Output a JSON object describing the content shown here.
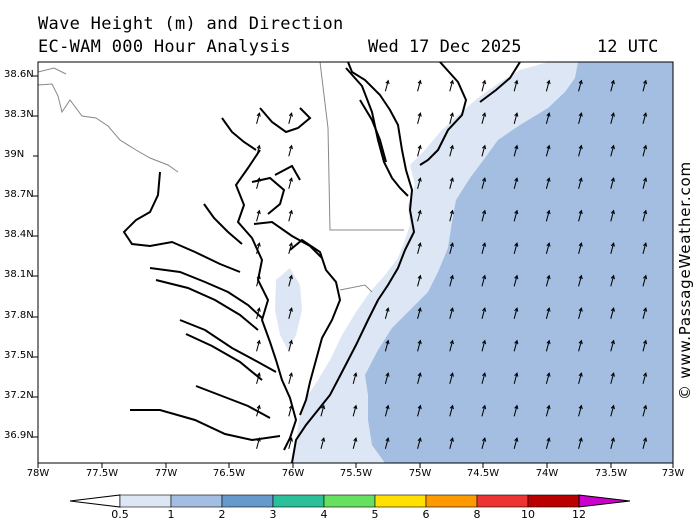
{
  "title": {
    "line1": "Wave Height (m) and Direction",
    "line2": "EC-WAM 000 Hour Analysis",
    "date": "Wed 17 Dec 2025",
    "time": "12 UTC"
  },
  "credit": "© www.PassageWeather.com",
  "axes": {
    "lat_labels": [
      "38.6N",
      "38.3N",
      "39N",
      "38.7N",
      "38.4N",
      "38.1N",
      "37.8N",
      "37.5N",
      "37.2N",
      "36.9N"
    ],
    "lon_labels": [
      "78W",
      "77.5W",
      "77W",
      "76.5W",
      "76W",
      "75.5W",
      "75W",
      "74.5W",
      "74W",
      "73.5W",
      "73W"
    ]
  },
  "colorbar": {
    "labels": [
      "0.5",
      "1",
      "2",
      "3",
      "4",
      "5",
      "6",
      "8",
      "10",
      "12"
    ],
    "colors": [
      "#dde6f4",
      "#a3bee0",
      "#6699cc",
      "#2bbf9a",
      "#66e060",
      "#ffe000",
      "#ff9900",
      "#ee3333",
      "#bb0000",
      "#cc00cc"
    ]
  },
  "legend": {
    "unit": "m"
  },
  "colors": {
    "shallow": "#dde6f4",
    "deep": "#a3bee0",
    "land": "#ffffff",
    "coast": "#000000",
    "border": "#888888"
  },
  "arrows": {
    "direction_deg": 15,
    "note_icon": "wave-direction-arrow-icon"
  }
}
